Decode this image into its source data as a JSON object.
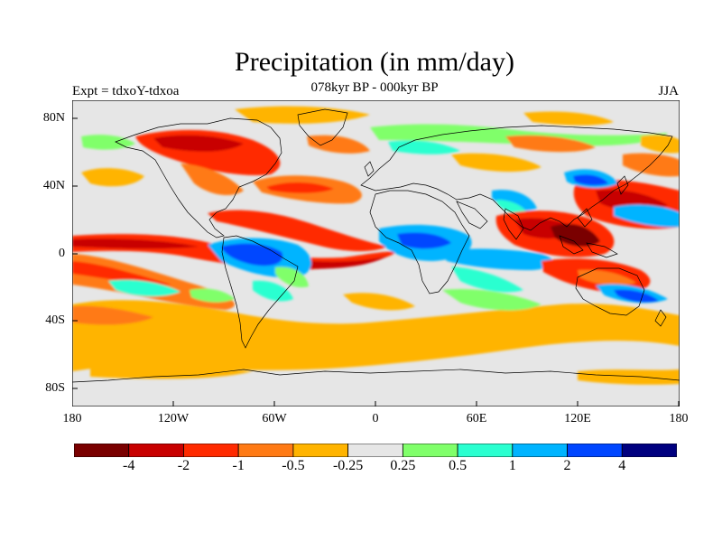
{
  "header": {
    "title": "Precipitation (in mm/day)",
    "subtitle": "078kyr BP - 000kyr BP",
    "left_label": "Expt = tdxoY-tdxoa",
    "right_label": "JJA"
  },
  "axes": {
    "lat_ticks": [
      "80N",
      "40N",
      "0",
      "40S",
      "80S"
    ],
    "lon_ticks": [
      "180",
      "120W",
      "60W",
      "0",
      "60E",
      "120E",
      "180"
    ]
  },
  "colorbar": {
    "colors": [
      "#7a0000",
      "#c80000",
      "#ff2a00",
      "#ff7a14",
      "#ffb400",
      "#e6e6e6",
      "#80ff6a",
      "#2affd0",
      "#00b4ff",
      "#0046ff",
      "#00007f"
    ],
    "labels": [
      "-4",
      "-2",
      "-1",
      "-0.5",
      "-0.25",
      "0.25",
      "0.5",
      "1",
      "2",
      "4"
    ]
  }
}
